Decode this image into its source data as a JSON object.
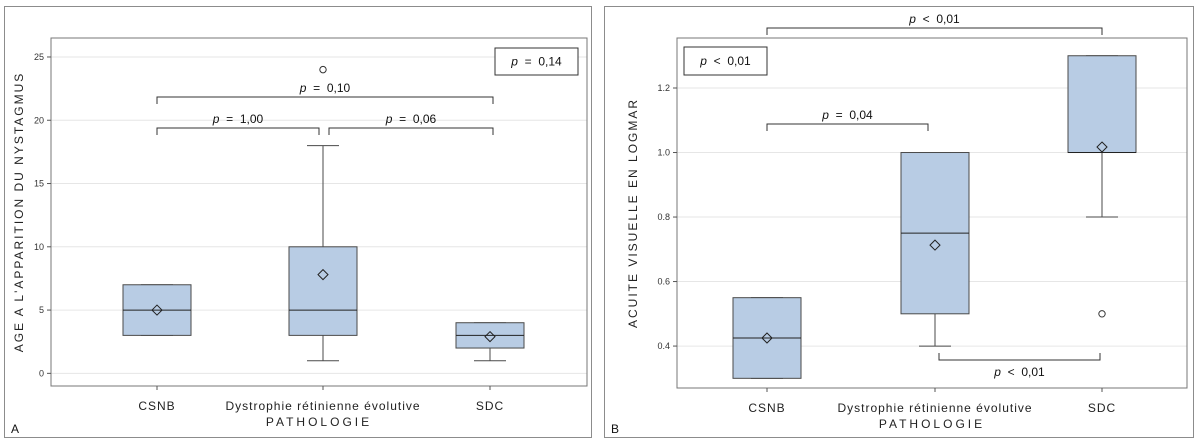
{
  "chart_data": [
    {
      "type": "box",
      "panel_letter": "A",
      "xlabel": "PATHOLOGIE",
      "ylabel": "AGE A L'APPARITION DU NYSTAGMUS",
      "ylim": [
        -1,
        26.5
      ],
      "yticks": [
        "0",
        "5",
        "10",
        "15",
        "20",
        "25"
      ],
      "categories": [
        "CSNB",
        "Dystrophie rétinienne évolutive",
        "SDC"
      ],
      "boxes": [
        {
          "category": "CSNB",
          "min": 3,
          "q1": 3,
          "median": 5,
          "q3": 7,
          "max": 7,
          "mean": 5,
          "outliers": []
        },
        {
          "category": "Dystrophie rétinienne évolutive",
          "min": 1,
          "q1": 3,
          "median": 5,
          "q3": 10,
          "max": 18,
          "mean": 7.8,
          "outliers": [
            24
          ]
        },
        {
          "category": "SDC",
          "min": 1,
          "q1": 2,
          "median": 3,
          "q3": 4,
          "max": 4,
          "mean": 2.9,
          "outliers": []
        }
      ],
      "global_test": "p = 0,14",
      "comparisons": [
        {
          "from": "CSNB",
          "to": "SDC",
          "label": "p = 0,10"
        },
        {
          "from": "CSNB",
          "to": "Dystrophie rétinienne évolutive",
          "label": "p = 1,00"
        },
        {
          "from": "Dystrophie rétinienne évolutive",
          "to": "SDC",
          "label": "p = 0,06"
        }
      ],
      "grid": true
    },
    {
      "type": "box",
      "panel_letter": "B",
      "xlabel": "PATHOLOGIE",
      "ylabel": "ACUITE VISUELLE EN LOGMAR",
      "ylim": [
        0.27,
        1.355
      ],
      "yticks": [
        "0.4",
        "0.6",
        "0.8",
        "1.0",
        "1.2"
      ],
      "categories": [
        "CSNB",
        "Dystrophie rétinienne évolutive",
        "SDC"
      ],
      "boxes": [
        {
          "category": "CSNB",
          "min": 0.3,
          "q1": 0.3,
          "median": 0.425,
          "q3": 0.55,
          "max": 0.55,
          "mean": 0.425,
          "outliers": []
        },
        {
          "category": "Dystrophie rétinienne évolutive",
          "min": 0.4,
          "q1": 0.5,
          "median": 0.75,
          "q3": 1.0,
          "max": 1.0,
          "mean": 0.713,
          "outliers": []
        },
        {
          "category": "SDC",
          "min": 0.8,
          "q1": 1.0,
          "median": 1.0,
          "q3": 1.3,
          "max": 1.3,
          "mean": 1.017,
          "outliers": [
            0.5
          ]
        }
      ],
      "global_test": "p < 0,01",
      "comparisons": [
        {
          "from": "CSNB",
          "to": "SDC",
          "label": "p < 0,01",
          "side": "top"
        },
        {
          "from": "CSNB",
          "to": "Dystrophie rétinienne évolutive",
          "label": "p = 0,04",
          "side": "top"
        },
        {
          "from": "Dystrophie rétinienne évolutive",
          "to": "SDC",
          "label": "p < 0,01",
          "side": "bottom"
        }
      ],
      "grid": true
    }
  ],
  "colors": {
    "box_fill": "#b8cce4",
    "box_stroke": "#4a4a4a",
    "grid": "#e6e6e6"
  }
}
